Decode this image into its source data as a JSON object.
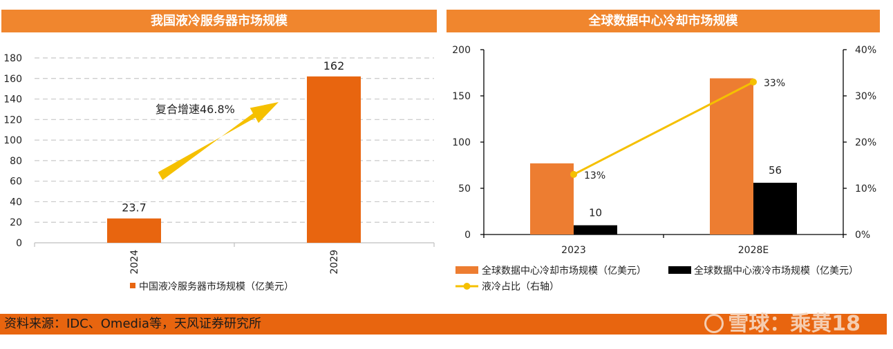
{
  "chart_data": [
    {
      "type": "bar",
      "title": "我国液冷服务器市场规模",
      "categories": [
        "2024",
        "2029"
      ],
      "series": [
        {
          "name": "中国液冷服务器市场规模（亿美元）",
          "values": [
            23.7,
            162
          ],
          "color": "#e8650f"
        }
      ],
      "data_labels": [
        "23.7",
        "162"
      ],
      "ylim": [
        0,
        180
      ],
      "yticks": [
        "0",
        "20",
        "40",
        "60",
        "80",
        "100",
        "120",
        "140",
        "160",
        "180"
      ],
      "grid": true,
      "annotation": "复合增速46.8%",
      "legend_position": "bottom"
    },
    {
      "type": "bar",
      "title": "全球数据中心冷却市场规模",
      "categories": [
        "2023",
        "2028E"
      ],
      "series": [
        {
          "name": "全球数据中心冷却市场规模（亿美元）",
          "values": [
            77,
            169
          ],
          "color": "#ed7d31"
        },
        {
          "name": "全球数据中心液冷市场规模（亿美元）",
          "values": [
            10,
            56
          ],
          "color": "#000000"
        },
        {
          "name": "液冷占比（右轴）",
          "type": "line",
          "axis": "right",
          "values": [
            0.13,
            0.33
          ],
          "color": "#f5c000"
        }
      ],
      "data_labels_black": [
        "10",
        "56"
      ],
      "data_labels_line": [
        "13%",
        "33%"
      ],
      "ylim": [
        0,
        200
      ],
      "yticks": [
        "0",
        "50",
        "100",
        "150",
        "200"
      ],
      "y2lim": [
        0,
        0.4
      ],
      "y2ticks": [
        "0%",
        "10%",
        "20%",
        "30%",
        "40%"
      ],
      "grid": false,
      "legend_position": "bottom"
    }
  ],
  "footer": {
    "source": "资料来源：IDC、Omedia等，天风证券研究所",
    "watermark": "雪球：乘黄18"
  }
}
